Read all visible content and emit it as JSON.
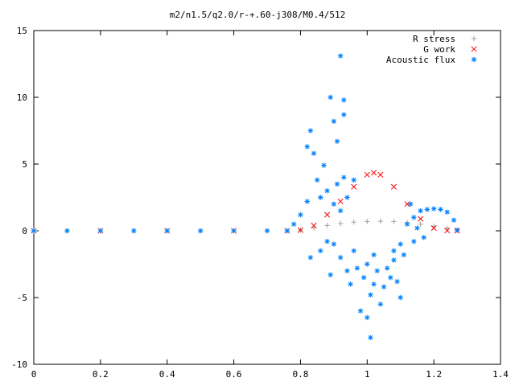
{
  "chart_data": {
    "type": "scatter",
    "title": "m2/n1.5/q2.0/r-+.60-j308/M0.4/512",
    "xlabel": "",
    "ylabel": "",
    "xlim": [
      0,
      1.4
    ],
    "ylim": [
      -10,
      15
    ],
    "x_ticks": [
      "0",
      "0.2",
      "0.4",
      "0.6",
      "0.8",
      "1",
      "1.2",
      "1.4"
    ],
    "y_ticks": [
      "15",
      "10",
      "5",
      "0",
      "-5",
      "-10"
    ],
    "grid": false,
    "legend_position": "top-right",
    "series": [
      {
        "name": "R stress",
        "marker": "+",
        "color": "#a0a0a0",
        "points": [
          [
            0.0,
            0
          ],
          [
            0.1,
            0
          ],
          [
            0.2,
            0
          ],
          [
            0.3,
            0
          ],
          [
            0.4,
            0
          ],
          [
            0.5,
            0
          ],
          [
            0.6,
            0
          ],
          [
            0.7,
            0
          ],
          [
            0.76,
            0
          ],
          [
            0.8,
            0.05
          ],
          [
            0.84,
            0.2
          ],
          [
            0.88,
            0.4
          ],
          [
            0.92,
            0.55
          ],
          [
            0.96,
            0.65
          ],
          [
            1.0,
            0.7
          ],
          [
            1.04,
            0.72
          ],
          [
            1.08,
            0.7
          ],
          [
            1.12,
            0.62
          ],
          [
            1.16,
            0.5
          ],
          [
            1.2,
            0.35
          ],
          [
            1.24,
            0.18
          ],
          [
            1.27,
            0.05
          ]
        ]
      },
      {
        "name": "G work",
        "marker": "x",
        "color": "#ff0000",
        "points": [
          [
            0.0,
            0
          ],
          [
            0.2,
            0
          ],
          [
            0.4,
            0
          ],
          [
            0.6,
            0
          ],
          [
            0.76,
            0
          ],
          [
            0.8,
            0.05
          ],
          [
            0.84,
            0.4
          ],
          [
            0.88,
            1.2
          ],
          [
            0.92,
            2.2
          ],
          [
            0.96,
            3.3
          ],
          [
            1.0,
            4.2
          ],
          [
            1.02,
            4.35
          ],
          [
            1.04,
            4.2
          ],
          [
            1.08,
            3.3
          ],
          [
            1.12,
            2.0
          ],
          [
            1.16,
            0.9
          ],
          [
            1.2,
            0.2
          ],
          [
            1.24,
            0.02
          ],
          [
            1.27,
            0
          ]
        ]
      },
      {
        "name": "Acoustic flux",
        "marker": "*",
        "color": "#0080ff",
        "points": [
          [
            0.0,
            0
          ],
          [
            0.1,
            0
          ],
          [
            0.2,
            0
          ],
          [
            0.3,
            0
          ],
          [
            0.4,
            0
          ],
          [
            0.5,
            0
          ],
          [
            0.6,
            0
          ],
          [
            0.7,
            0
          ],
          [
            0.76,
            0
          ],
          [
            0.78,
            0.5
          ],
          [
            0.8,
            1.2
          ],
          [
            0.82,
            2.2
          ],
          [
            0.82,
            6.3
          ],
          [
            0.83,
            7.5
          ],
          [
            0.83,
            -2.0
          ],
          [
            0.84,
            5.8
          ],
          [
            0.85,
            3.8
          ],
          [
            0.86,
            2.5
          ],
          [
            0.86,
            -1.5
          ],
          [
            0.87,
            4.9
          ],
          [
            0.88,
            3.0
          ],
          [
            0.88,
            -0.8
          ],
          [
            0.89,
            10.0
          ],
          [
            0.89,
            -3.3
          ],
          [
            0.9,
            8.2
          ],
          [
            0.9,
            2.0
          ],
          [
            0.9,
            -1.0
          ],
          [
            0.91,
            6.7
          ],
          [
            0.91,
            3.5
          ],
          [
            0.92,
            13.1
          ],
          [
            0.92,
            1.5
          ],
          [
            0.92,
            -2.0
          ],
          [
            0.93,
            9.8
          ],
          [
            0.93,
            8.7
          ],
          [
            0.93,
            4.0
          ],
          [
            0.94,
            -3.0
          ],
          [
            0.94,
            2.5
          ],
          [
            0.95,
            -4.0
          ],
          [
            0.96,
            -1.5
          ],
          [
            0.96,
            3.8
          ],
          [
            0.97,
            -2.8
          ],
          [
            0.98,
            -6.0
          ],
          [
            0.99,
            -3.5
          ],
          [
            1.0,
            -6.5
          ],
          [
            1.0,
            -2.5
          ],
          [
            1.01,
            -8.0
          ],
          [
            1.01,
            -4.8
          ],
          [
            1.02,
            -4.0
          ],
          [
            1.02,
            -1.8
          ],
          [
            1.03,
            -3.0
          ],
          [
            1.04,
            -5.5
          ],
          [
            1.05,
            -4.2
          ],
          [
            1.06,
            -2.8
          ],
          [
            1.07,
            -3.5
          ],
          [
            1.08,
            -1.5
          ],
          [
            1.08,
            -2.2
          ],
          [
            1.09,
            -3.8
          ],
          [
            1.1,
            -1.0
          ],
          [
            1.1,
            -5.0
          ],
          [
            1.11,
            -1.8
          ],
          [
            1.12,
            0.5
          ],
          [
            1.13,
            2.0
          ],
          [
            1.14,
            1.0
          ],
          [
            1.14,
            -0.8
          ],
          [
            1.15,
            0.2
          ],
          [
            1.16,
            1.5
          ],
          [
            1.17,
            -0.5
          ],
          [
            1.18,
            1.6
          ],
          [
            1.2,
            1.65
          ],
          [
            1.22,
            1.6
          ],
          [
            1.24,
            1.4
          ],
          [
            1.26,
            0.8
          ],
          [
            1.27,
            0.05
          ]
        ]
      }
    ]
  }
}
